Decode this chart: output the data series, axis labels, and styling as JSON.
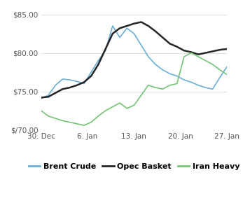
{
  "title": "",
  "xlabel": "",
  "ylabel": "",
  "ylim": [
    70.0,
    85.5
  ],
  "yticks": [
    70.0,
    75.0,
    80.0,
    85.0
  ],
  "ytick_labels": [
    "$/70.00",
    "$75.00",
    "$80.00",
    "$85.00"
  ],
  "xtick_labels": [
    "30. Dec",
    "6. Jan",
    "13. Jan",
    "20. Jan",
    "27. Jan"
  ],
  "background_color": "#ffffff",
  "grid_color": "#e0e0e0",
  "brent_color": "#6baed6",
  "opec_color": "#252525",
  "iran_color": "#74c476",
  "brent_crude": [
    74.1,
    74.5,
    75.8,
    76.6,
    76.5,
    76.3,
    76.0,
    77.5,
    79.0,
    80.3,
    83.5,
    82.0,
    83.2,
    82.5,
    81.0,
    79.5,
    78.5,
    77.8,
    77.3,
    77.0,
    76.5,
    76.2,
    75.8,
    75.5,
    75.3,
    76.8,
    78.2
  ],
  "opec_basket": [
    74.2,
    74.3,
    74.8,
    75.3,
    75.5,
    75.8,
    76.2,
    77.0,
    78.5,
    80.5,
    82.5,
    83.2,
    83.5,
    83.8,
    84.0,
    83.5,
    82.8,
    82.0,
    81.2,
    80.8,
    80.3,
    80.1,
    79.8,
    80.0,
    80.2,
    80.4,
    80.5
  ],
  "iran_heavy": [
    72.5,
    71.8,
    71.5,
    71.2,
    71.0,
    70.8,
    70.6,
    71.0,
    71.8,
    72.5,
    73.0,
    73.5,
    72.8,
    73.2,
    74.5,
    75.8,
    75.5,
    75.3,
    75.8,
    76.0,
    79.5,
    80.0,
    79.5,
    79.0,
    78.5,
    77.8,
    77.2
  ],
  "legend_entries": [
    "Brent Crude",
    "Opec Basket",
    "Iran Heavy"
  ]
}
